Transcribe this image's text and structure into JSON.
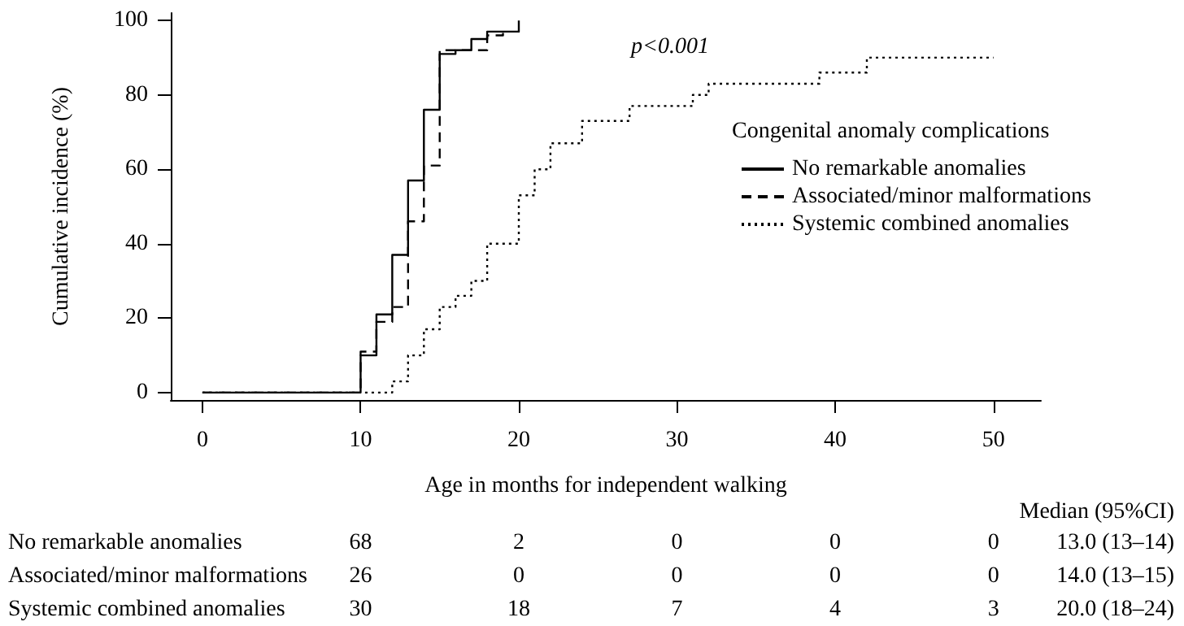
{
  "chart_data": {
    "type": "step",
    "xlabel": "Age in months for independent walking",
    "ylabel": "Cumulative incidence (%)",
    "legend_title": "Congenital anomaly complications",
    "xlim": [
      -2,
      53
    ],
    "xticks": [
      0,
      10,
      20,
      30,
      40,
      50
    ],
    "ylim": [
      -2,
      102
    ],
    "yticks": [
      0,
      20,
      40,
      60,
      80,
      100
    ],
    "series": [
      {
        "name": "No remarkable anomalies",
        "color": "#000000",
        "line_style": "solid",
        "x": [
          0,
          10,
          11,
          12,
          13,
          14,
          15,
          16,
          17,
          18,
          19,
          20
        ],
        "values": [
          0,
          10,
          21,
          37,
          57,
          76,
          91,
          92,
          95,
          97,
          97,
          100
        ]
      },
      {
        "name": "Associated/minor malformations",
        "color": "#000000",
        "line_style": "dashed",
        "x": [
          0,
          10,
          11,
          12,
          13,
          14,
          15,
          16,
          17,
          18,
          19
        ],
        "values": [
          0,
          11,
          19,
          23,
          46,
          61,
          92,
          92,
          92,
          96,
          97
        ]
      },
      {
        "name": "Systemic combined anomalies",
        "color": "#000000",
        "line_style": "dotted",
        "x": [
          0,
          12,
          13,
          14,
          15,
          16,
          17,
          18,
          20,
          21,
          22,
          24,
          27,
          31,
          32,
          39,
          42,
          50
        ],
        "values": [
          0,
          3,
          10,
          17,
          23,
          26,
          30,
          40,
          53,
          60,
          67,
          73,
          77,
          80,
          83,
          86,
          90,
          90
        ]
      }
    ],
    "legend": "right",
    "grid": false,
    "marker": "none",
    "annotations": [
      "p<0.001",
      "Median (95%CI)",
      "No remarkable anomalies",
      "68",
      "2",
      "0",
      "0",
      "0",
      "13.0 (13–14)",
      "Associated/minor malformations",
      "26",
      "0",
      "0",
      "0",
      "0",
      "14.0 (13–15)",
      "Systemic combined anomalies",
      "30",
      "18",
      "7",
      "4",
      "3",
      "20.0 (18–24)"
    ]
  }
}
